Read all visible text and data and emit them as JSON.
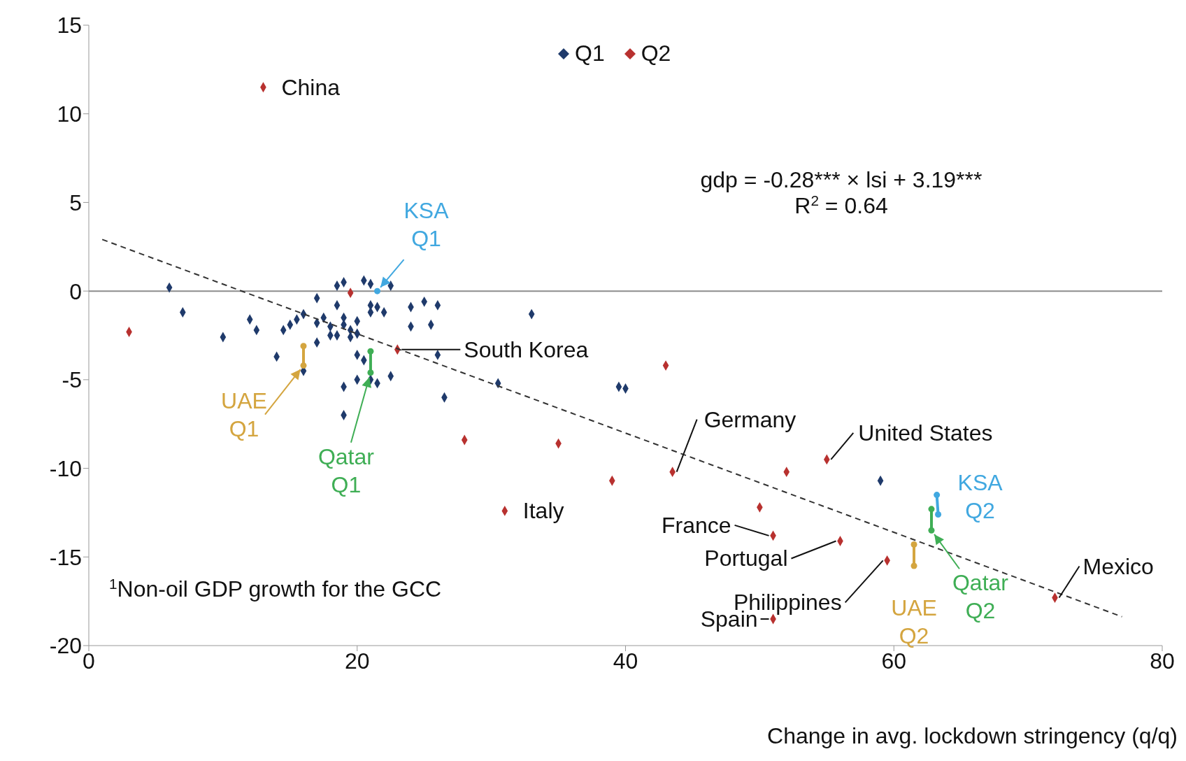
{
  "chart_data": {
    "type": "scatter",
    "xlabel": "Change in avg. lockdown stringency (q/q)",
    "xlim": [
      0,
      80
    ],
    "xticks": [
      0,
      20,
      40,
      60,
      80
    ],
    "ylim": [
      -20,
      15
    ],
    "yticks": [
      -20,
      -15,
      -10,
      -5,
      0,
      5,
      10,
      15
    ],
    "grid": false,
    "legend": "top",
    "marker": "diamond",
    "ref_lines": [
      {
        "axis": "y",
        "value": 0,
        "color": "#8c8c8c"
      }
    ],
    "series": [
      {
        "name": "Q1",
        "color": "#1f3a6b",
        "x": [
          6,
          7,
          10,
          12,
          12.5,
          14,
          14.5,
          15,
          15.5,
          16,
          16,
          17,
          17,
          17.5,
          17,
          18,
          18.5,
          18.5,
          19,
          18.5,
          19,
          19.5,
          19,
          19,
          19,
          20,
          20,
          20,
          20.5,
          20.5,
          21,
          21,
          21,
          21.5,
          20,
          21,
          21.5,
          22,
          22.5,
          22.5,
          24,
          24,
          25,
          25.5,
          26,
          26,
          26.5,
          30.5,
          33,
          39.5,
          40,
          59,
          18,
          19.5
        ],
        "values": [
          0.2,
          -1.2,
          -2.6,
          -1.6,
          -2.2,
          -3.7,
          -2.2,
          -1.9,
          -1.6,
          -1.3,
          -4.5,
          -0.4,
          -1.8,
          -1.5,
          -2.9,
          -2,
          -0.8,
          0.3,
          0.5,
          -2.5,
          -1.9,
          -2.2,
          -1.5,
          -7,
          -5.4,
          -1.7,
          -2.4,
          -3.6,
          0.6,
          -3.9,
          0.4,
          -0.8,
          -1.2,
          -0.9,
          -5,
          -5,
          -5.2,
          -1.2,
          0.3,
          -4.8,
          -0.9,
          -2,
          -0.6,
          -1.9,
          -0.8,
          -3.6,
          -6,
          -5.2,
          -1.3,
          -5.4,
          -5.5,
          -10.7,
          -2.5,
          -2.6
        ]
      },
      {
        "name": "Q2",
        "color": "#b8312f",
        "x": [
          3,
          13,
          19.5,
          23,
          28,
          31,
          35,
          39,
          43,
          43.5,
          50,
          51,
          51,
          52,
          55,
          56,
          59.5,
          72
        ],
        "values": [
          -2.3,
          11.5,
          -0.1,
          -3.3,
          -8.4,
          -12.4,
          -8.6,
          -10.7,
          -4.2,
          -10.2,
          -12.2,
          -13.8,
          -18.5,
          -10.2,
          -9.5,
          -14.1,
          -15.2,
          -17.3
        ]
      },
      {
        "type": "line",
        "marker": "circle",
        "color": "#41a8e0",
        "x": [
          21.5
        ],
        "values": [
          0
        ]
      },
      {
        "type": "line",
        "marker": "circle",
        "color": "#d4a53f",
        "x": [
          16,
          16
        ],
        "values": [
          -3.1,
          -4.2
        ]
      },
      {
        "type": "line",
        "marker": "circle",
        "color": "#3fae55",
        "x": [
          21,
          21
        ],
        "values": [
          -3.4,
          -4.6
        ]
      },
      {
        "type": "line",
        "marker": "circle",
        "color": "#41a8e0",
        "x": [
          63.2,
          63.3
        ],
        "values": [
          -11.5,
          -12.6
        ]
      },
      {
        "type": "line",
        "marker": "circle",
        "color": "#d4a53f",
        "x": [
          61.5,
          61.5
        ],
        "values": [
          -14.3,
          -15.5
        ]
      },
      {
        "type": "line",
        "marker": "circle",
        "color": "#3fae55",
        "x": [
          62.8,
          62.8
        ],
        "values": [
          -12.3,
          -13.5
        ]
      },
      {
        "type": "line",
        "marker": "none",
        "line_style": "dashed",
        "color": "#333333",
        "x": [
          1,
          77
        ],
        "values": [
          2.91,
          -18.37
        ]
      }
    ],
    "annotations": [
      {
        "text": "China",
        "x": 13,
        "y": 11.5
      },
      {
        "text": "South Korea",
        "x": 23,
        "y": -3.3
      },
      {
        "text": "Italy",
        "x": 31,
        "y": -12.4
      },
      {
        "text": "Germany",
        "x": 43.5,
        "y": -10.2
      },
      {
        "text": "United States",
        "x": 55,
        "y": -9.5
      },
      {
        "text": "France",
        "x": 51,
        "y": -13.8
      },
      {
        "text": "Portugal",
        "x": 56,
        "y": -14.1
      },
      {
        "text": "Philippines",
        "x": 59.5,
        "y": -15.2
      },
      {
        "text": "Spain",
        "x": 51,
        "y": -18.5
      },
      {
        "text": "Mexico",
        "x": 72,
        "y": -17.3
      },
      {
        "text": "KSA\nQ1",
        "x": 21.5,
        "y": 0
      },
      {
        "text": "UAE\nQ1",
        "x": 16,
        "y": -4.2
      },
      {
        "text": "Qatar\nQ1",
        "x": 21,
        "y": -4.6
      },
      {
        "text": "KSA\nQ2",
        "x": 63.3,
        "y": -12
      },
      {
        "text": "UAE\nQ2",
        "x": 61.5,
        "y": -15.5
      },
      {
        "text": "Qatar\nQ2",
        "x": 62.8,
        "y": -13.5
      },
      "gdp = -0.28*** × lsi + 3.19***",
      "R$^{2}$ = 0.64",
      "$^{1}$Non-oil GDP growth for the GCC"
    ]
  }
}
